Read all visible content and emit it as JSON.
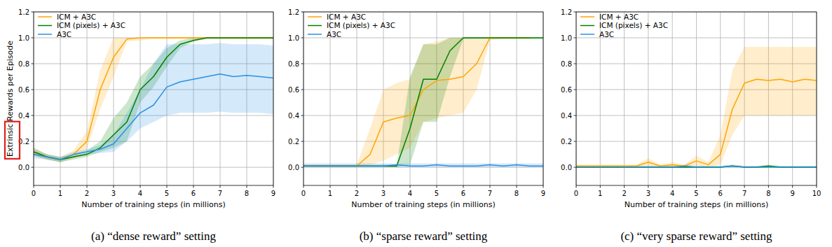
{
  "chart_data": [
    {
      "type": "line",
      "caption": "(a) “dense reward” setting",
      "ylabel": "Extrinsic Rewards per Episode",
      "xlabel": "Number of training steps (in millions)",
      "grid": true,
      "legend": "upper left",
      "xlim": [
        0,
        9
      ],
      "xticks": [
        0,
        1,
        2,
        3,
        4,
        5,
        6,
        7,
        8,
        9
      ],
      "ylim": [
        -0.14,
        1.2
      ],
      "yticks": [
        {
          "value": 0,
          "label": "0.0"
        },
        {
          "value": 0.2,
          "label": "0.2"
        },
        {
          "value": 0.4,
          "label": "0.4"
        },
        {
          "value": 0.6,
          "label": "0.6"
        },
        {
          "value": 0.8,
          "label": "0.8"
        },
        {
          "value": 1.0,
          "label": "1.0"
        },
        {
          "value": 1.2,
          "label": "1.2"
        }
      ],
      "x": [
        0,
        0.5,
        1,
        1.5,
        2,
        2.5,
        3,
        3.5,
        4,
        4.5,
        5,
        5.5,
        6,
        6.5,
        7,
        7.5,
        8,
        8.5,
        9
      ],
      "series": [
        {
          "name": "ICM + A3C",
          "color": "#ffa500",
          "values": [
            0.12,
            0.08,
            0.06,
            0.1,
            0.2,
            0.6,
            0.85,
            0.99,
            1.0,
            1.0,
            1.0,
            1.0,
            1.0,
            1.0,
            1.0,
            1.0,
            1.0,
            1.0,
            1.0
          ],
          "lower": [
            0.09,
            0.06,
            0.04,
            0.07,
            0.14,
            0.45,
            0.7,
            0.97,
            0.98,
            0.99,
            0.99,
            0.99,
            0.99,
            0.99,
            0.99,
            0.99,
            0.99,
            0.99,
            0.99
          ],
          "upper": [
            0.15,
            0.1,
            0.08,
            0.13,
            0.28,
            0.75,
            1.0,
            1.0,
            1.0,
            1.0,
            1.0,
            1.0,
            1.0,
            1.0,
            1.0,
            1.0,
            1.0,
            1.0,
            1.0
          ]
        },
        {
          "name": "ICM (pixels) + A3C",
          "color": "#008000",
          "values": [
            0.12,
            0.08,
            0.06,
            0.08,
            0.1,
            0.15,
            0.25,
            0.35,
            0.6,
            0.7,
            0.85,
            0.95,
            0.98,
            1.0,
            1.0,
            1.0,
            1.0,
            1.0,
            1.0
          ],
          "lower": [
            0.09,
            0.06,
            0.04,
            0.06,
            0.08,
            0.12,
            0.15,
            0.2,
            0.5,
            0.62,
            0.78,
            0.92,
            0.97,
            0.99,
            0.99,
            0.99,
            0.99,
            0.99,
            0.99
          ],
          "upper": [
            0.15,
            0.1,
            0.08,
            0.1,
            0.13,
            0.2,
            0.38,
            0.5,
            0.7,
            0.8,
            0.92,
            0.98,
            1.0,
            1.0,
            1.0,
            1.0,
            1.0,
            1.0,
            1.0
          ]
        },
        {
          "name": "A3C",
          "color": "#2990e6",
          "values": [
            0.1,
            0.08,
            0.06,
            0.1,
            0.12,
            0.14,
            0.18,
            0.3,
            0.42,
            0.48,
            0.62,
            0.66,
            0.68,
            0.7,
            0.72,
            0.7,
            0.71,
            0.7,
            0.69
          ],
          "lower": [
            0.07,
            0.06,
            0.04,
            0.08,
            0.1,
            0.11,
            0.12,
            0.2,
            0.3,
            0.35,
            0.4,
            0.42,
            0.42,
            0.42,
            0.43,
            0.42,
            0.42,
            0.42,
            0.41
          ],
          "upper": [
            0.13,
            0.1,
            0.08,
            0.12,
            0.14,
            0.17,
            0.25,
            0.42,
            0.6,
            0.8,
            0.95,
            0.95,
            0.95,
            0.95,
            0.96,
            0.95,
            0.95,
            0.95,
            0.94
          ]
        }
      ]
    },
    {
      "type": "line",
      "caption": "(b) “sparse reward” setting",
      "xlabel": "Number of training steps (in millions)",
      "grid": true,
      "legend": "upper left",
      "xlim": [
        0,
        9
      ],
      "xticks": [
        0,
        1,
        2,
        3,
        4,
        5,
        6,
        7,
        8,
        9
      ],
      "ylim": [
        -0.14,
        1.2
      ],
      "yticks": [
        {
          "value": 0,
          "label": "0.0"
        },
        {
          "value": 0.2,
          "label": "0.2"
        },
        {
          "value": 0.4,
          "label": "0.4"
        },
        {
          "value": 0.6,
          "label": "0.6"
        },
        {
          "value": 0.8,
          "label": "0.8"
        },
        {
          "value": 1.0,
          "label": "1.0"
        },
        {
          "value": 1.2,
          "label": "1.2"
        }
      ],
      "x": [
        0,
        0.5,
        1,
        1.5,
        2,
        2.5,
        3,
        3.5,
        4,
        4.5,
        5,
        5.5,
        6,
        6.5,
        7,
        7.5,
        8,
        8.5,
        9
      ],
      "series": [
        {
          "name": "ICM + A3C",
          "color": "#ffa500",
          "values": [
            0.01,
            0.01,
            0.01,
            0.01,
            0.01,
            0.1,
            0.35,
            0.38,
            0.4,
            0.6,
            0.67,
            0.68,
            0.7,
            0.8,
            1.0,
            1.0,
            1.0,
            1.0,
            null
          ],
          "lower": [
            0.0,
            0.0,
            0.0,
            0.0,
            0.0,
            0.02,
            0.05,
            0.1,
            0.15,
            0.35,
            0.38,
            0.4,
            0.42,
            0.6,
            0.98,
            0.99,
            0.99,
            0.99,
            null
          ],
          "upper": [
            0.02,
            0.02,
            0.02,
            0.02,
            0.02,
            0.3,
            0.6,
            0.65,
            0.68,
            0.95,
            0.97,
            1.0,
            1.0,
            1.0,
            1.0,
            1.0,
            1.0,
            1.0,
            null
          ]
        },
        {
          "name": "ICM (pixels) + A3C",
          "color": "#008000",
          "values": [
            0.01,
            0.01,
            0.01,
            0.01,
            0.01,
            0.01,
            0.01,
            0.01,
            0.3,
            0.68,
            0.68,
            0.9,
            1.0,
            1.0,
            1.0,
            1.0,
            1.0,
            1.0,
            1.0
          ],
          "lower": [
            0.0,
            0.0,
            0.0,
            0.0,
            0.0,
            0.0,
            0.0,
            0.0,
            0.02,
            0.35,
            0.35,
            0.7,
            0.99,
            0.99,
            0.99,
            0.99,
            0.99,
            0.99,
            0.99
          ],
          "upper": [
            0.02,
            0.02,
            0.02,
            0.02,
            0.02,
            0.02,
            0.02,
            0.02,
            0.7,
            0.95,
            0.95,
            1.0,
            1.0,
            1.0,
            1.0,
            1.0,
            1.0,
            1.0,
            1.0
          ]
        },
        {
          "name": "A3C",
          "color": "#2990e6",
          "values": [
            0.01,
            0.01,
            0.01,
            0.01,
            0.01,
            0.01,
            0.01,
            0.02,
            0.01,
            0.01,
            0.02,
            0.01,
            0.01,
            0.01,
            0.02,
            0.01,
            0.02,
            0.01,
            0.01
          ],
          "lower": [
            0.0,
            0.0,
            0.0,
            0.0,
            0.0,
            0.0,
            0.0,
            0.0,
            0.0,
            0.0,
            0.0,
            0.0,
            0.0,
            0.0,
            0.0,
            0.0,
            0.0,
            0.0,
            0.0
          ],
          "upper": [
            0.03,
            0.03,
            0.03,
            0.03,
            0.03,
            0.03,
            0.03,
            0.03,
            0.03,
            0.03,
            0.03,
            0.03,
            0.03,
            0.03,
            0.03,
            0.03,
            0.03,
            0.03,
            0.03
          ]
        }
      ]
    },
    {
      "type": "line",
      "caption": "(c) “very sparse reward” setting",
      "xlabel": "Number of training steps (in millions)",
      "grid": true,
      "legend": "upper left",
      "xlim": [
        0,
        10
      ],
      "xticks": [
        0,
        1,
        2,
        3,
        4,
        5,
        6,
        7,
        8,
        9,
        10
      ],
      "ylim": [
        -0.14,
        1.2
      ],
      "yticks": [
        {
          "value": 0,
          "label": "0.0"
        },
        {
          "value": 0.2,
          "label": "0.2"
        },
        {
          "value": 0.4,
          "label": "0.4"
        },
        {
          "value": 0.6,
          "label": "0.6"
        },
        {
          "value": 0.8,
          "label": "0.8"
        },
        {
          "value": 1.0,
          "label": "1.0"
        },
        {
          "value": 1.2,
          "label": "1.2"
        }
      ],
      "x": [
        0,
        0.5,
        1,
        1.5,
        2,
        2.5,
        3,
        3.5,
        4,
        4.5,
        5,
        5.5,
        6,
        6.5,
        7,
        7.5,
        8,
        8.5,
        9,
        9.5,
        10
      ],
      "series": [
        {
          "name": "ICM + A3C",
          "color": "#ffa500",
          "values": [
            0.01,
            0.01,
            0.01,
            0.01,
            0.01,
            0.01,
            0.04,
            0.01,
            0.02,
            0.01,
            0.05,
            0.02,
            0.1,
            0.45,
            0.65,
            0.68,
            0.67,
            0.68,
            0.66,
            0.68,
            0.67
          ],
          "lower": [
            0.0,
            0.0,
            0.0,
            0.0,
            0.0,
            0.0,
            0.01,
            0.0,
            0.0,
            0.0,
            0.01,
            0.0,
            0.02,
            0.25,
            0.4,
            0.4,
            0.4,
            0.4,
            0.4,
            0.4,
            0.4
          ],
          "upper": [
            0.02,
            0.02,
            0.02,
            0.02,
            0.02,
            0.02,
            0.07,
            0.02,
            0.04,
            0.02,
            0.09,
            0.04,
            0.25,
            0.75,
            0.93,
            0.93,
            0.93,
            0.93,
            0.93,
            0.93,
            0.93
          ]
        },
        {
          "name": "ICM (pixels) + A3C",
          "color": "#008000",
          "values": [
            0.0,
            0.0,
            0.0,
            0.0,
            0.0,
            0.0,
            0.0,
            0.0,
            0.0,
            0.0,
            0.0,
            0.0,
            0.0,
            0.01,
            0.0,
            0.0,
            0.01,
            0.0,
            0.0,
            0.0,
            0.0
          ],
          "lower": [
            0.0,
            0.0,
            0.0,
            0.0,
            0.0,
            0.0,
            0.0,
            0.0,
            0.0,
            0.0,
            0.0,
            0.0,
            0.0,
            0.0,
            0.0,
            0.0,
            0.0,
            0.0,
            0.0,
            0.0,
            0.0
          ],
          "upper": [
            0.01,
            0.01,
            0.01,
            0.01,
            0.01,
            0.01,
            0.01,
            0.01,
            0.01,
            0.01,
            0.01,
            0.01,
            0.01,
            0.02,
            0.01,
            0.01,
            0.02,
            0.01,
            0.01,
            0.01,
            0.01
          ]
        },
        {
          "name": "A3C",
          "color": "#2990e6",
          "values": [
            0.0,
            0.0,
            0.0,
            0.0,
            0.0,
            0.0,
            0.0,
            0.0,
            0.0,
            0.01,
            0.0,
            0.0,
            0.0,
            0.01,
            0.0,
            0.0,
            0.0,
            0.0,
            0.0,
            0.0,
            0.0
          ],
          "lower": [
            0.0,
            0.0,
            0.0,
            0.0,
            0.0,
            0.0,
            0.0,
            0.0,
            0.0,
            0.0,
            0.0,
            0.0,
            0.0,
            0.0,
            0.0,
            0.0,
            0.0,
            0.0,
            0.0,
            0.0,
            0.0
          ],
          "upper": [
            0.01,
            0.01,
            0.01,
            0.01,
            0.01,
            0.01,
            0.01,
            0.01,
            0.01,
            0.02,
            0.01,
            0.01,
            0.01,
            0.02,
            0.01,
            0.01,
            0.01,
            0.01,
            0.01,
            0.01,
            0.01
          ]
        }
      ]
    }
  ]
}
